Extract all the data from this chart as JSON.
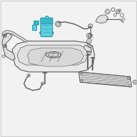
{
  "bg_color": "#f2f2f2",
  "line_color": "#555555",
  "light_fill": "#e8e8e8",
  "mid_fill": "#d8d8d8",
  "highlight_color": "#3ab8c8",
  "highlight_color2": "#5dcfdf",
  "highlight_color3": "#2a9ab0",
  "border_color": "#bbbbbb",
  "figsize": [
    2.0,
    2.0
  ],
  "dpi": 100
}
